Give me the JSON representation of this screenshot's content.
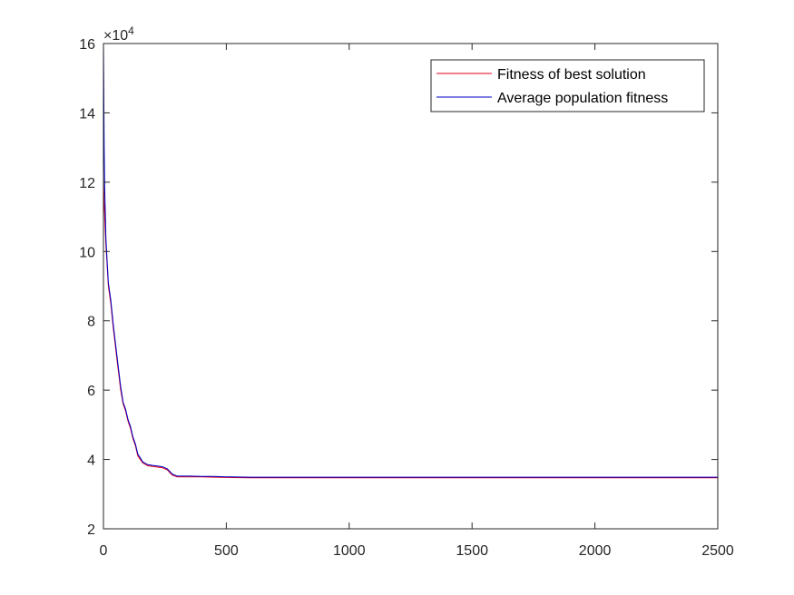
{
  "chart_data": {
    "type": "line",
    "title": "",
    "xlabel": "",
    "ylabel": "",
    "xlim": [
      0,
      2500
    ],
    "ylim": [
      20000,
      160000
    ],
    "xticks": [
      "0",
      "500",
      "1000",
      "1500",
      "2000",
      "2500"
    ],
    "yticks": [
      "2",
      "4",
      "6",
      "8",
      "10",
      "12",
      "14",
      "16"
    ],
    "y_exponent": {
      "base": "×10",
      "power": "4"
    },
    "grid": false,
    "legend_position": "top-right",
    "series": [
      {
        "name": "Fitness of best solution",
        "color": "#e2001a",
        "points": [
          [
            0,
            122000
          ],
          [
            2,
            116000
          ],
          [
            5,
            110000
          ],
          [
            10,
            102000
          ],
          [
            15,
            96000
          ],
          [
            20,
            90000
          ],
          [
            30,
            85000
          ],
          [
            40,
            78000
          ],
          [
            50,
            72000
          ],
          [
            60,
            66000
          ],
          [
            70,
            60000
          ],
          [
            80,
            56000
          ],
          [
            90,
            54000
          ],
          [
            100,
            51000
          ],
          [
            110,
            49000
          ],
          [
            120,
            46000
          ],
          [
            130,
            44000
          ],
          [
            140,
            41000
          ],
          [
            150,
            40000
          ],
          [
            160,
            39000
          ],
          [
            180,
            38200
          ],
          [
            200,
            38000
          ],
          [
            220,
            37800
          ],
          [
            240,
            37600
          ],
          [
            260,
            37000
          ],
          [
            280,
            35500
          ],
          [
            300,
            35000
          ],
          [
            350,
            35000
          ],
          [
            400,
            35000
          ],
          [
            450,
            34900
          ],
          [
            500,
            34800
          ],
          [
            600,
            34700
          ],
          [
            800,
            34700
          ],
          [
            1000,
            34700
          ],
          [
            1500,
            34700
          ],
          [
            2000,
            34700
          ],
          [
            2500,
            34700
          ]
        ]
      },
      {
        "name": "Average population fitness",
        "color": "#0000c8",
        "points": [
          [
            0,
            160000
          ],
          [
            1,
            150000
          ],
          [
            3,
            130000
          ],
          [
            5,
            118000
          ],
          [
            8,
            110000
          ],
          [
            10,
            104000
          ],
          [
            15,
            97000
          ],
          [
            20,
            91000
          ],
          [
            30,
            86000
          ],
          [
            40,
            79000
          ],
          [
            50,
            73000
          ],
          [
            60,
            67000
          ],
          [
            70,
            61000
          ],
          [
            80,
            56500
          ],
          [
            90,
            54500
          ],
          [
            100,
            51500
          ],
          [
            110,
            49500
          ],
          [
            120,
            46500
          ],
          [
            130,
            44500
          ],
          [
            140,
            41500
          ],
          [
            150,
            40500
          ],
          [
            160,
            39300
          ],
          [
            180,
            38500
          ],
          [
            200,
            38300
          ],
          [
            220,
            38100
          ],
          [
            240,
            37900
          ],
          [
            260,
            37300
          ],
          [
            280,
            35800
          ],
          [
            300,
            35200
          ],
          [
            350,
            35200
          ],
          [
            400,
            35100
          ],
          [
            450,
            35100
          ],
          [
            500,
            35000
          ],
          [
            600,
            34900
          ],
          [
            800,
            34900
          ],
          [
            1000,
            34900
          ],
          [
            1500,
            34900
          ],
          [
            2000,
            34900
          ],
          [
            2500,
            34900
          ]
        ]
      }
    ]
  }
}
